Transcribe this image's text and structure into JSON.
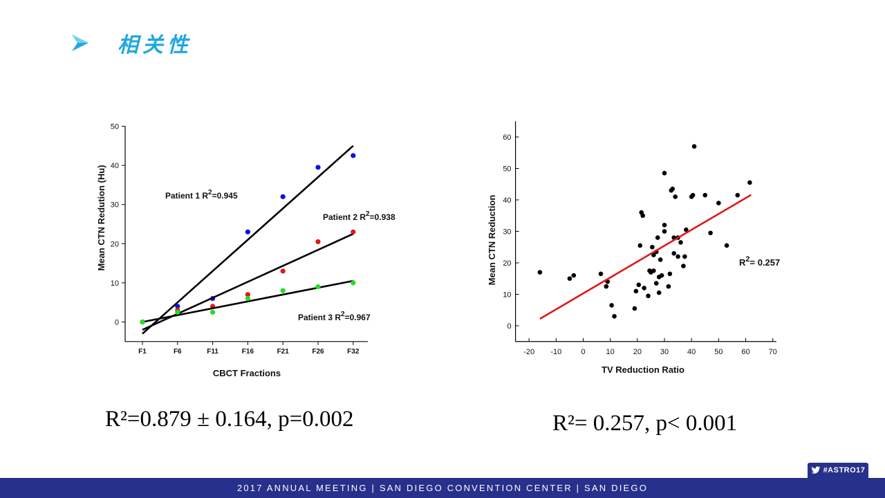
{
  "slide": {
    "title": "相关性",
    "icons": {
      "bullet": "arrowhead-bullet-icon",
      "badge": "twitter-bird-icon"
    },
    "colors": {
      "title": "#20a8e0",
      "footer_bg": "#27308a",
      "footer_text": "#ffffff"
    },
    "summary_left": "R²=0.879 ± 0.164, p=0.002",
    "summary_right": "R²= 0.257, p< 0.001",
    "hashtag": "#ASTRO17",
    "footer": "2017 ANNUAL MEETING  |  SAN DIEGO CONVENTION CENTER  |  SAN DIEGO"
  },
  "chart_data": [
    {
      "type": "scatter",
      "xlabel": "CBCT Fractions",
      "ylabel": "Mean CTN Redution (Hu)",
      "categories": [
        "F1",
        "F6",
        "F11",
        "F16",
        "F21",
        "F26",
        "F32"
      ],
      "ylim": [
        -5,
        50
      ],
      "yticks": [
        0,
        10,
        20,
        30,
        40,
        50
      ],
      "grid": false,
      "series": [
        {
          "color": "#1010e0",
          "values": [
            0,
            4,
            6,
            23,
            32,
            39.5,
            42.5
          ],
          "fit": [
            -3,
            45
          ],
          "annotation": "Patient 1 R=0.945",
          "annotation_sup": "2"
        },
        {
          "color": "#e01818",
          "values": [
            0,
            3,
            4,
            7,
            13,
            20.5,
            23
          ],
          "fit": [
            -2,
            22.5
          ],
          "annotation": "Patient 2 R=0.938",
          "annotation_sup": "2"
        },
        {
          "color": "#20e020",
          "values": [
            0,
            2.5,
            2.5,
            6,
            8,
            9,
            10
          ],
          "fit": [
            0,
            10.5
          ],
          "annotation": "Patient 3 R=0.967",
          "annotation_sup": "2"
        }
      ]
    },
    {
      "type": "scatter",
      "xlabel": "TV Reduction Ratio",
      "ylabel": "Mean CTN Reduction",
      "xlim": [
        -25,
        70
      ],
      "ylim": [
        -5,
        65
      ],
      "xticks": [
        -20,
        -10,
        0,
        10,
        20,
        30,
        40,
        50,
        60,
        70
      ],
      "yticks": [
        0,
        10,
        20,
        30,
        40,
        50,
        60
      ],
      "grid": false,
      "annotation": "R= 0.257",
      "annotation_sup": "2",
      "fit_line": {
        "x": [
          -16,
          62
        ],
        "y": [
          2.2,
          41.6
        ],
        "color": "#e01818"
      },
      "points": [
        [
          -16,
          17
        ],
        [
          -5,
          15
        ],
        [
          -3.5,
          16
        ],
        [
          6.5,
          16.5
        ],
        [
          8.5,
          12.5
        ],
        [
          9,
          14
        ],
        [
          10.5,
          6.5
        ],
        [
          11.5,
          3
        ],
        [
          19,
          5.5
        ],
        [
          19.5,
          11
        ],
        [
          20.5,
          13
        ],
        [
          21,
          25.5
        ],
        [
          21.5,
          36
        ],
        [
          22,
          35
        ],
        [
          22.5,
          12
        ],
        [
          24,
          9.5
        ],
        [
          24.5,
          17.5
        ],
        [
          25,
          17
        ],
        [
          25.5,
          25
        ],
        [
          26,
          22.5
        ],
        [
          26,
          17.5
        ],
        [
          27,
          23.5
        ],
        [
          27,
          13.5
        ],
        [
          27.5,
          28
        ],
        [
          28,
          10.5
        ],
        [
          28,
          15.5
        ],
        [
          28.5,
          21
        ],
        [
          29,
          16
        ],
        [
          30,
          48.5
        ],
        [
          30,
          32
        ],
        [
          30,
          30
        ],
        [
          31.5,
          12.5
        ],
        [
          32,
          16.5
        ],
        [
          32.5,
          43
        ],
        [
          33,
          43.5
        ],
        [
          33.5,
          28
        ],
        [
          33.5,
          23
        ],
        [
          34,
          41
        ],
        [
          35,
          22
        ],
        [
          35,
          28
        ],
        [
          36,
          26.5
        ],
        [
          37,
          19
        ],
        [
          37.5,
          22
        ],
        [
          38,
          30.5
        ],
        [
          40,
          41
        ],
        [
          40.5,
          41.5
        ],
        [
          41,
          57
        ],
        [
          45,
          41.5
        ],
        [
          47,
          29.5
        ],
        [
          50,
          39
        ],
        [
          53,
          25.5
        ],
        [
          57,
          41.5
        ],
        [
          61.5,
          45.5
        ]
      ]
    }
  ]
}
